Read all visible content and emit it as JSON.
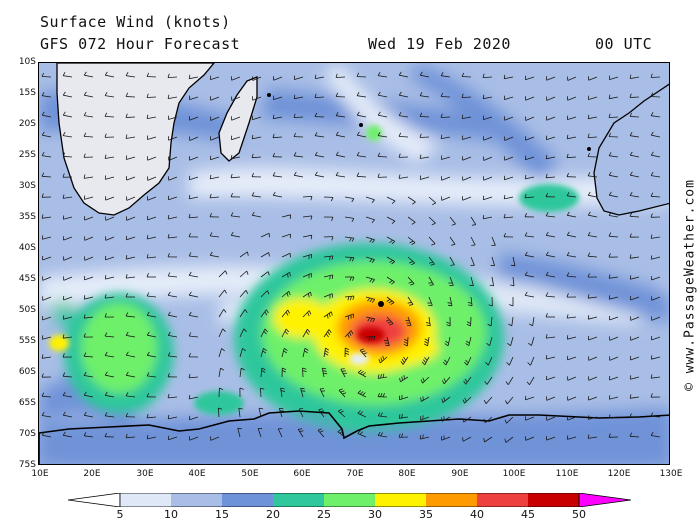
{
  "header": {
    "title": "Surface Wind (knots)",
    "subtitle": "GFS 072 Hour Forecast",
    "date": "Wed 19 Feb 2020",
    "time": "00 UTC"
  },
  "copyright": "© www.PassageWeather.com",
  "map": {
    "lat_labels": [
      "10S",
      "15S",
      "20S",
      "25S",
      "30S",
      "35S",
      "40S",
      "45S",
      "50S",
      "55S",
      "60S",
      "65S",
      "70S",
      "75S"
    ],
    "lon_labels": [
      "10E",
      "20E",
      "30E",
      "40E",
      "50E",
      "60E",
      "70E",
      "80E",
      "90E",
      "100E",
      "110E",
      "120E",
      "130E"
    ],
    "lat_range": [
      -10,
      -75
    ],
    "lon_range": [
      10,
      130
    ],
    "cyclone_center": {
      "lon": 73,
      "lat": -56
    },
    "max_wind_zone": {
      "lon": 75,
      "lat": -54
    }
  },
  "legend": {
    "labels": [
      "5",
      "10",
      "15",
      "20",
      "25",
      "30",
      "35",
      "40",
      "45",
      "50"
    ],
    "colors": [
      "#ffffff",
      "#dfe8f6",
      "#a9bee6",
      "#6f93d8",
      "#2fc79c",
      "#6ef06a",
      "#fff200",
      "#ff9a00",
      "#ef4040",
      "#c80000",
      "#ff00ff"
    ]
  }
}
